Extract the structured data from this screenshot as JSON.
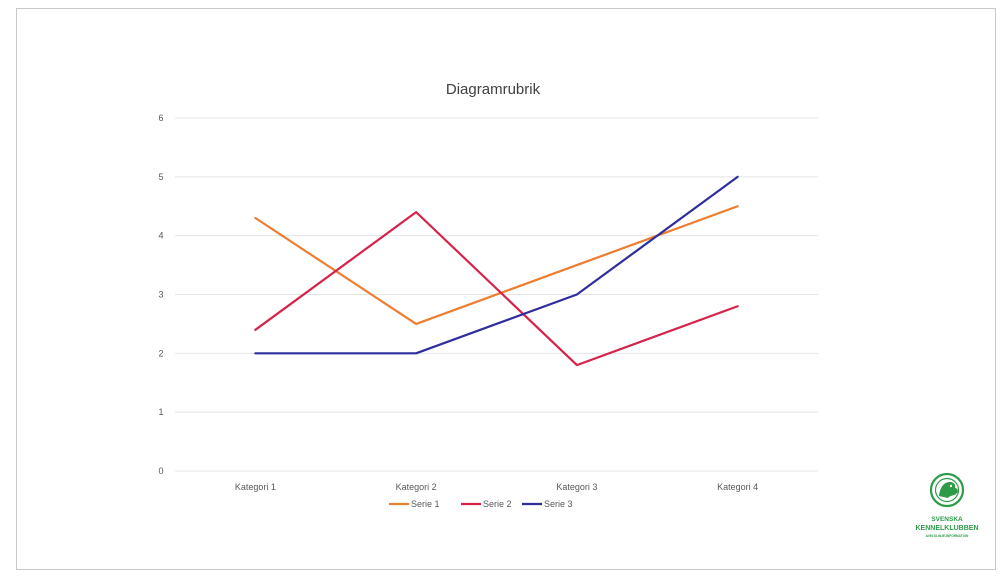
{
  "chart_data": {
    "type": "line",
    "title": "Diagramrubrik",
    "categories": [
      "Kategori 1",
      "Kategori 2",
      "Kategori 3",
      "Kategori 4"
    ],
    "series": [
      {
        "name": "Serie 1",
        "color": "#ed7d31",
        "values": [
          4.3,
          2.5,
          3.5,
          4.5
        ]
      },
      {
        "name": "Serie 2",
        "color": "#d6234a",
        "values": [
          2.4,
          4.4,
          1.8,
          2.8
        ]
      },
      {
        "name": "Serie 3",
        "color": "#2e2e9c",
        "values": [
          2.0,
          2.0,
          3.0,
          5.0
        ]
      }
    ],
    "ylim": [
      0,
      6
    ],
    "yticks": [
      "0",
      "1",
      "2",
      "3",
      "4",
      "5",
      "6"
    ],
    "grid": true,
    "legend_position": "bottom"
  },
  "logo": {
    "name": "Svenska Kennelklubben",
    "line1": "SVENSKA",
    "line2": "KENNELKLUBBEN",
    "line3": "AVELSLINJE-INFORMATION",
    "color": "#2e9b48"
  }
}
